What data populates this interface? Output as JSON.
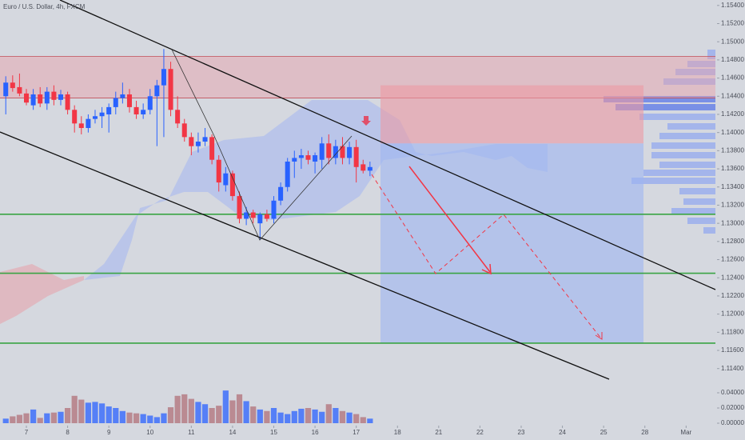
{
  "chart_data": {
    "type": "candlestick",
    "title": "Euro / U.S. Dollar, 4h, FXCM",
    "up_color": "#2962ff",
    "down_color": "#f23645",
    "open": [
      1.144,
      1.1455,
      1.145,
      1.1443,
      1.143,
      1.1442,
      1.1432,
      1.1445,
      1.1436,
      1.1442,
      1.1425,
      1.141,
      1.1405,
      1.1415,
      1.1418,
      1.142,
      1.1428,
      1.1438,
      1.1442,
      1.1428,
      1.142,
      1.1425,
      1.144,
      1.1452,
      1.147,
      1.1425,
      1.141,
      1.1395,
      1.1385,
      1.139,
      1.1395,
      1.137,
      1.1342,
      1.1355,
      1.133,
      1.1305,
      1.1312,
      1.13,
      1.131,
      1.1305,
      1.1325,
      1.134,
      1.1368,
      1.1372,
      1.1375,
      1.1368,
      1.137,
      1.1388,
      1.1372,
      1.1385,
      1.1372,
      1.1384,
      1.1365,
      1.1358
    ],
    "high": [
      1.1462,
      1.1463,
      1.1465,
      1.1448,
      1.1448,
      1.145,
      1.145,
      1.1452,
      1.1447,
      1.1445,
      1.143,
      1.1418,
      1.142,
      1.1425,
      1.1428,
      1.1432,
      1.1445,
      1.1455,
      1.1448,
      1.1435,
      1.1432,
      1.1448,
      1.1458,
      1.1492,
      1.1478,
      1.144,
      1.1415,
      1.14,
      1.14,
      1.1405,
      1.1398,
      1.1375,
      1.1362,
      1.1358,
      1.1335,
      1.1318,
      1.1315,
      1.1312,
      1.1315,
      1.133,
      1.1345,
      1.1372,
      1.138,
      1.1382,
      1.138,
      1.1378,
      1.1395,
      1.1398,
      1.1392,
      1.1395,
      1.139,
      1.1392,
      1.137,
      1.1368
    ],
    "low": [
      1.142,
      1.1445,
      1.144,
      1.143,
      1.1425,
      1.1428,
      1.1425,
      1.143,
      1.143,
      1.142,
      1.14,
      1.1398,
      1.14,
      1.141,
      1.1405,
      1.14,
      1.142,
      1.1432,
      1.1422,
      1.1415,
      1.1415,
      1.142,
      1.1385,
      1.1395,
      1.1418,
      1.1405,
      1.139,
      1.1375,
      1.1378,
      1.1385,
      1.1365,
      1.1335,
      1.1335,
      1.1325,
      1.13,
      1.1298,
      1.13,
      1.1282,
      1.1302,
      1.13,
      1.132,
      1.1335,
      1.135,
      1.136,
      1.1365,
      1.1355,
      1.136,
      1.1365,
      1.1365,
      1.1365,
      1.1365,
      1.1345,
      1.1355,
      1.1352
    ],
    "close": [
      1.1455,
      1.1449,
      1.1443,
      1.1433,
      1.1442,
      1.1432,
      1.1445,
      1.1436,
      1.1442,
      1.1425,
      1.141,
      1.1405,
      1.1415,
      1.1418,
      1.1422,
      1.1428,
      1.1438,
      1.1442,
      1.1428,
      1.142,
      1.1425,
      1.144,
      1.1452,
      1.147,
      1.1425,
      1.141,
      1.1395,
      1.1385,
      1.139,
      1.1395,
      1.137,
      1.1345,
      1.1355,
      1.133,
      1.1305,
      1.1312,
      1.1306,
      1.131,
      1.1305,
      1.1325,
      1.134,
      1.1368,
      1.1372,
      1.1375,
      1.137,
      1.1375,
      1.1388,
      1.1372,
      1.1385,
      1.1372,
      1.1384,
      1.1362,
      1.1358,
      1.1362
    ],
    "volume": [
      0.006,
      0.009,
      0.011,
      0.013,
      0.018,
      0.007,
      0.013,
      0.014,
      0.015,
      0.02,
      0.036,
      0.031,
      0.027,
      0.028,
      0.026,
      0.022,
      0.02,
      0.016,
      0.014,
      0.013,
      0.012,
      0.01,
      0.008,
      0.013,
      0.021,
      0.036,
      0.038,
      0.032,
      0.028,
      0.025,
      0.02,
      0.023,
      0.043,
      0.03,
      0.038,
      0.029,
      0.022,
      0.018,
      0.016,
      0.02,
      0.014,
      0.012,
      0.016,
      0.019,
      0.02,
      0.018,
      0.015,
      0.025,
      0.02,
      0.016,
      0.014,
      0.012,
      0.008,
      0.006
    ],
    "xlim": [
      -0.84,
      103.5
    ],
    "xticks": [
      {
        "value": 3,
        "label": "7"
      },
      {
        "value": 9,
        "label": "8"
      },
      {
        "value": 15,
        "label": "9"
      },
      {
        "value": 21,
        "label": "10"
      },
      {
        "value": 27,
        "label": "11"
      },
      {
        "value": 33,
        "label": "14"
      },
      {
        "value": 39,
        "label": "15"
      },
      {
        "value": 45,
        "label": "16"
      },
      {
        "value": 51,
        "label": "17"
      },
      {
        "value": 57,
        "label": "18"
      },
      {
        "value": 63,
        "label": "21"
      },
      {
        "value": 69,
        "label": "22"
      },
      {
        "value": 75,
        "label": "23"
      },
      {
        "value": 81,
        "label": "24"
      },
      {
        "value": 87,
        "label": "25"
      },
      {
        "value": 93,
        "label": "28"
      },
      {
        "value": 99,
        "label": "Mar"
      }
    ],
    "ylim": [
      1.1123,
      1.1546
    ],
    "yticks": [
      {
        "value": 1.154,
        "label": "1.15400"
      },
      {
        "value": 1.152,
        "label": "1.15200"
      },
      {
        "value": 1.15,
        "label": "1.15000"
      },
      {
        "value": 1.148,
        "label": "1.14800"
      },
      {
        "value": 1.146,
        "label": "1.14600"
      },
      {
        "value": 1.144,
        "label": "1.14400"
      },
      {
        "value": 1.142,
        "label": "1.14200"
      },
      {
        "value": 1.14,
        "label": "1.14000"
      },
      {
        "value": 1.138,
        "label": "1.13800"
      },
      {
        "value": 1.136,
        "label": "1.13600"
      },
      {
        "value": 1.134,
        "label": "1.13400"
      },
      {
        "value": 1.132,
        "label": "1.13200"
      },
      {
        "value": 1.13,
        "label": "1.13000"
      },
      {
        "value": 1.128,
        "label": "1.12800"
      },
      {
        "value": 1.126,
        "label": "1.12600"
      },
      {
        "value": 1.124,
        "label": "1.12400"
      },
      {
        "value": 1.122,
        "label": "1.12200"
      },
      {
        "value": 1.12,
        "label": "1.12000"
      },
      {
        "value": 1.118,
        "label": "1.11800"
      },
      {
        "value": 1.116,
        "label": "1.11600"
      },
      {
        "value": 1.114,
        "label": "1.11400"
      }
    ],
    "vlim": [
      0,
      0.0463
    ],
    "vticks": [
      {
        "value": 0.04,
        "label": "0.04000"
      },
      {
        "value": 0.02,
        "label": "0.02000"
      },
      {
        "value": 0,
        "label": "0.00000"
      }
    ],
    "support_levels": [
      1.131,
      1.1245,
      1.1168
    ],
    "resistance_levels": [
      1.1484,
      1.1438
    ],
    "position": {
      "stop": 1.1452,
      "entry": 1.1388,
      "target": 1.1168
    }
  }
}
